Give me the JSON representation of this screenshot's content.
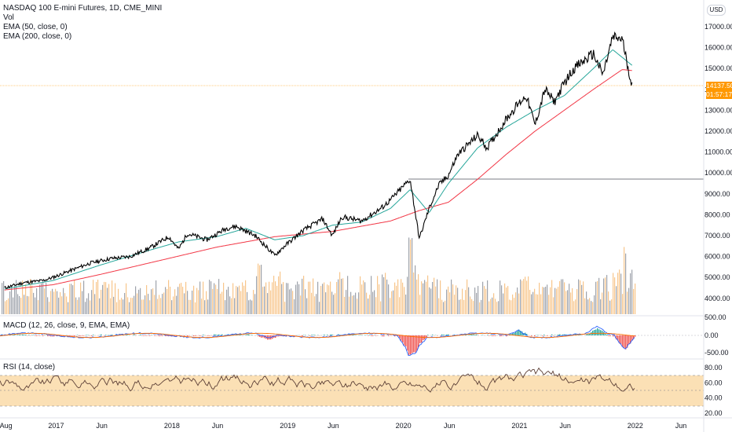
{
  "legend": {
    "title": "NASDAQ 100 E-mini Futures, 1D, CME_MINI",
    "vol": "Vol",
    "ema50": "EMA (50, close, 0)",
    "ema200": "EMA (200, close, 0)",
    "macd": "MACD (12, 26, close, 9, EMA, EMA)",
    "rsi": "RSI (14, close)"
  },
  "currency": "USD",
  "last_price": {
    "value": "14137.50",
    "countdown": "01:57:17"
  },
  "colors": {
    "price": "#000000",
    "ema50": "#26a69a",
    "ema200": "#f23645",
    "volume_up": "#f7c58b",
    "volume_down": "#9ea3ab",
    "macd": "#2962ff",
    "signal": "#ff6d00",
    "hist_up": "#26a69a",
    "hist_down": "#ef5350",
    "rsi": "#5d4037",
    "rsi_band": "#fbe0b5",
    "last_price": "#ff9800",
    "level_line": "#787b86"
  },
  "chart_data": [
    {
      "type": "line",
      "title": "NASDAQ 100 E-mini Futures, 1D, CME_MINI",
      "x_ticks": [
        "Aug",
        "2017",
        "Jun",
        "2018",
        "Jun",
        "2019",
        "Jun",
        "2020",
        "Jun",
        "2021",
        "Jun",
        "2022",
        "Jun"
      ],
      "y_ticks": [
        "17000.00",
        "16000.00",
        "15000.00",
        "14000.00",
        "13000.00",
        "12000.00",
        "11000.00",
        "10000.00",
        "9000.00",
        "8000.00",
        "7000.00",
        "6000.00",
        "5000.00",
        "4000.00"
      ],
      "ylim": [
        3600,
        17600
      ],
      "level_line": 9750,
      "series": [
        {
          "name": "NASDAQ 100 E-mini Futures",
          "x": [
            "2016-08",
            "2016-10",
            "2016-12",
            "2017-01",
            "2017-03",
            "2017-05",
            "2017-07",
            "2017-09",
            "2017-11",
            "2018-01",
            "2018-02",
            "2018-03",
            "2018-05",
            "2018-07",
            "2018-08",
            "2018-10",
            "2018-12",
            "2019-01",
            "2019-03",
            "2019-05",
            "2019-06",
            "2019-07",
            "2019-09",
            "2019-11",
            "2019-12",
            "2020-02",
            "2020-03",
            "2020-04",
            "2020-05",
            "2020-06",
            "2020-07",
            "2020-09",
            "2020-10",
            "2020-11",
            "2020-12",
            "2021-01",
            "2021-02",
            "2021-03",
            "2021-04",
            "2021-05",
            "2021-06",
            "2021-07",
            "2021-09",
            "2021-10",
            "2021-11",
            "2021-12",
            "2022-01"
          ],
          "values": [
            4500,
            4750,
            4850,
            5000,
            5350,
            5700,
            5900,
            6000,
            6400,
            6950,
            6350,
            7100,
            6800,
            7350,
            7450,
            7000,
            6050,
            6500,
            7250,
            7800,
            7000,
            7900,
            7700,
            8300,
            8700,
            9700,
            6850,
            8300,
            9400,
            9900,
            10900,
            11800,
            11200,
            11900,
            12600,
            13200,
            13700,
            12300,
            14000,
            13400,
            14300,
            15000,
            15700,
            14700,
            16500,
            16400,
            14137.5
          ]
        },
        {
          "name": "EMA (50, close, 0)",
          "x": [
            "2016-08",
            "2017-01",
            "2017-06",
            "2017-11",
            "2018-02",
            "2018-06",
            "2018-09",
            "2018-12",
            "2019-03",
            "2019-06",
            "2019-09",
            "2019-12",
            "2020-02",
            "2020-04",
            "2020-06",
            "2020-09",
            "2020-12",
            "2021-03",
            "2021-06",
            "2021-09",
            "2021-11",
            "2022-01"
          ],
          "values": [
            4450,
            4850,
            5600,
            6300,
            6700,
            6950,
            7350,
            6800,
            7000,
            7500,
            7650,
            8300,
            9200,
            8100,
            9500,
            11200,
            12200,
            13000,
            13700,
            15000,
            15900,
            15150
          ]
        },
        {
          "name": "EMA (200, close, 0)",
          "x": [
            "2016-08",
            "2017-01",
            "2017-06",
            "2017-12",
            "2018-06",
            "2018-12",
            "2019-06",
            "2019-12",
            "2020-03",
            "2020-06",
            "2020-09",
            "2020-12",
            "2021-03",
            "2021-06",
            "2021-09",
            "2021-12",
            "2022-01"
          ],
          "values": [
            4400,
            4650,
            5150,
            5800,
            6450,
            6950,
            7200,
            7700,
            8200,
            8600,
            9700,
            10900,
            12000,
            13000,
            14000,
            14950,
            14900
          ]
        }
      ]
    },
    {
      "type": "bar",
      "title": "Vol",
      "description": "daily volume bars, taller around Dec 2018 and Mar 2020 and Jan 2022"
    },
    {
      "type": "line",
      "title": "MACD (12, 26, close, 9, EMA, EMA)",
      "y_ticks": [
        "500.00",
        "0.00",
        "-500.00"
      ],
      "ylim": [
        -600,
        600
      ]
    },
    {
      "type": "line",
      "title": "RSI (14, close)",
      "y_ticks": [
        "80.00",
        "60.00",
        "40.00",
        "20.00"
      ],
      "ylim": [
        14,
        86
      ],
      "band": [
        30,
        70
      ],
      "midline": 50
    }
  ]
}
